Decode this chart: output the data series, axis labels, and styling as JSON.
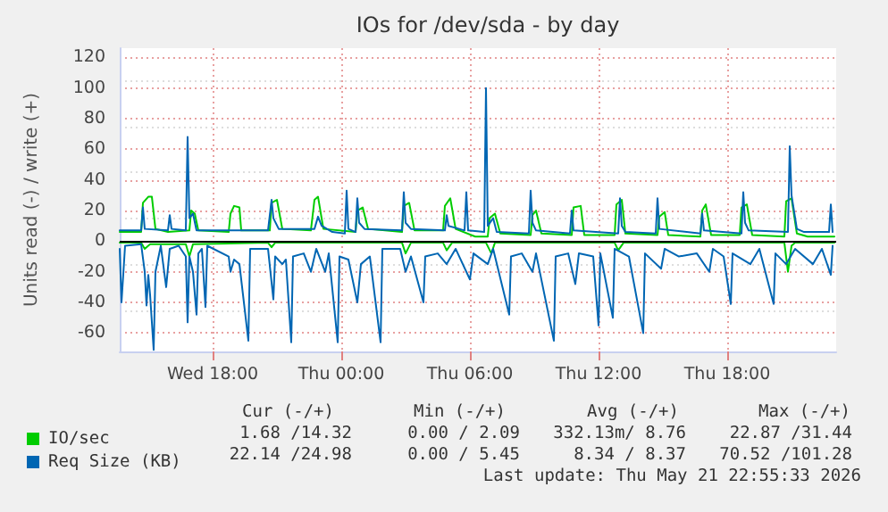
{
  "chart_data": {
    "type": "line",
    "title": "IOs for /dev/sda - by day",
    "ylabel": "Units read (-) / write (+)",
    "xlim": [
      "2026-05-20T13:40",
      "2026-05-21T23:05"
    ],
    "xticks": [
      {
        "value": "2026-05-20T18:00",
        "label": "Wed 18:00"
      },
      {
        "value": "2026-05-21T00:00",
        "label": "Thu 00:00"
      },
      {
        "value": "2026-05-21T06:00",
        "label": "Thu 06:00"
      },
      {
        "value": "2026-05-21T12:00",
        "label": "Thu 12:00"
      },
      {
        "value": "2026-05-21T18:00",
        "label": "Thu 18:00"
      }
    ],
    "ylim": [
      -72,
      126
    ],
    "yticks": [
      -60,
      -40,
      -20,
      0,
      20,
      40,
      60,
      80,
      100,
      120
    ],
    "grid": true,
    "legend": "bottom left",
    "marker": "none",
    "line_style": "solid",
    "ref_lines": [
      {
        "axis": "y",
        "value": 0,
        "color": "#000000"
      }
    ],
    "annotations": [
      "Cur (-/+)",
      "Min (-/+)",
      "Avg (-/+)",
      "Max (-/+)",
      "1.68 /14.32",
      "0.00 / 2.09",
      "332.13m/ 8.76",
      "22.87 /31.44",
      "22.14 /24.98",
      "0.00 / 5.45",
      "8.34 / 8.37",
      "70.52 /101.28",
      "Last update: Thu May 21 22:55:33 2026"
    ],
    "series": [
      {
        "name": "IO/sec",
        "color": "#00cc00",
        "x": [
          "2026-05-20T13:40",
          "2026-05-20T14:40",
          "2026-05-20T14:45",
          "2026-05-20T15:00",
          "2026-05-20T15:10",
          "2026-05-20T15:20",
          "2026-05-20T15:55",
          "2026-05-20T16:55",
          "2026-05-20T17:00",
          "2026-05-20T17:10",
          "2026-05-20T17:20",
          "2026-05-20T18:45",
          "2026-05-20T18:50",
          "2026-05-20T19:00",
          "2026-05-20T19:15",
          "2026-05-20T19:20",
          "2026-05-20T20:40",
          "2026-05-20T20:45",
          "2026-05-20T21:00",
          "2026-05-20T21:15",
          "2026-05-20T22:35",
          "2026-05-20T22:45",
          "2026-05-20T22:55",
          "2026-05-20T23:10",
          "2026-05-21T00:40",
          "2026-05-21T00:45",
          "2026-05-21T01:00",
          "2026-05-21T01:15",
          "2026-05-21T02:50",
          "2026-05-21T02:55",
          "2026-05-21T03:10",
          "2026-05-21T03:25",
          "2026-05-21T04:45",
          "2026-05-21T04:50",
          "2026-05-21T05:05",
          "2026-05-21T05:20",
          "2026-05-21T06:15",
          "2026-05-21T06:50",
          "2026-05-21T06:55",
          "2026-05-21T07:10",
          "2026-05-21T07:25",
          "2026-05-21T08:50",
          "2026-05-21T08:55",
          "2026-05-21T09:05",
          "2026-05-21T09:20",
          "2026-05-21T10:45",
          "2026-05-21T10:50",
          "2026-05-21T11:10",
          "2026-05-21T11:20",
          "2026-05-21T12:45",
          "2026-05-21T12:50",
          "2026-05-21T13:05",
          "2026-05-21T13:15",
          "2026-05-21T14:45",
          "2026-05-21T14:50",
          "2026-05-21T15:05",
          "2026-05-21T15:15",
          "2026-05-21T16:45",
          "2026-05-21T16:50",
          "2026-05-21T17:00",
          "2026-05-21T17:15",
          "2026-05-21T18:35",
          "2026-05-21T18:40",
          "2026-05-21T18:55",
          "2026-05-21T19:10",
          "2026-05-21T20:40",
          "2026-05-21T20:45",
          "2026-05-21T21:00",
          "2026-05-21T21:15",
          "2026-05-21T21:45",
          "2026-05-21T23:00"
        ],
        "values": [
          6,
          6,
          25,
          29,
          29,
          8,
          6,
          7,
          20,
          18,
          7,
          6,
          18,
          23,
          22,
          7,
          7,
          25,
          27,
          8,
          7,
          27,
          29,
          8,
          6,
          20,
          22,
          8,
          6,
          23,
          25,
          7,
          7,
          23,
          28,
          8,
          3,
          3,
          15,
          18,
          5,
          4,
          17,
          20,
          5,
          4,
          22,
          23,
          4,
          4,
          24,
          27,
          5,
          4,
          16,
          19,
          4,
          3,
          20,
          24,
          4,
          4,
          22,
          24,
          4,
          3,
          26,
          28,
          5,
          3,
          3
        ]
      },
      {
        "name": "Req Size (KB)",
        "color": "#0066b3",
        "x": [
          "2026-05-20T13:40",
          "2026-05-20T14:40",
          "2026-05-20T14:45",
          "2026-05-20T14:50",
          "2026-05-20T15:55",
          "2026-05-20T16:00",
          "2026-05-20T16:05",
          "2026-05-20T16:45",
          "2026-05-20T16:50",
          "2026-05-20T16:55",
          "2026-05-20T17:05",
          "2026-05-20T17:15",
          "2026-05-20T20:35",
          "2026-05-20T20:45",
          "2026-05-20T20:50",
          "2026-05-20T21:05",
          "2026-05-20T22:45",
          "2026-05-20T22:55",
          "2026-05-20T23:05",
          "2026-05-20T23:35",
          "2026-05-21T00:10",
          "2026-05-21T00:15",
          "2026-05-21T00:20",
          "2026-05-21T00:40",
          "2026-05-21T00:45",
          "2026-05-21T00:50",
          "2026-05-21T01:05",
          "2026-05-21T02:50",
          "2026-05-21T02:55",
          "2026-05-21T03:00",
          "2026-05-21T03:15",
          "2026-05-21T04:50",
          "2026-05-21T04:55",
          "2026-05-21T05:00",
          "2026-05-21T05:45",
          "2026-05-21T05:50",
          "2026-05-21T05:55",
          "2026-05-21T06:40",
          "2026-05-21T06:45",
          "2026-05-21T06:50",
          "2026-05-21T07:05",
          "2026-05-21T07:15",
          "2026-05-21T08:45",
          "2026-05-21T08:50",
          "2026-05-21T08:55",
          "2026-05-21T09:05",
          "2026-05-21T10:40",
          "2026-05-21T10:45",
          "2026-05-21T10:50",
          "2026-05-21T12:55",
          "2026-05-21T13:00",
          "2026-05-21T13:05",
          "2026-05-21T13:15",
          "2026-05-21T14:40",
          "2026-05-21T14:45",
          "2026-05-21T14:50",
          "2026-05-21T16:45",
          "2026-05-21T16:50",
          "2026-05-21T16:55",
          "2026-05-21T18:40",
          "2026-05-21T18:45",
          "2026-05-21T18:50",
          "2026-05-21T19:00",
          "2026-05-21T20:50",
          "2026-05-21T20:55",
          "2026-05-21T21:00",
          "2026-05-21T21:15",
          "2026-05-21T21:35",
          "2026-05-21T22:45",
          "2026-05-21T22:50",
          "2026-05-21T22:55"
        ],
        "values": [
          7,
          7,
          22,
          8,
          7,
          17,
          8,
          7,
          68,
          15,
          18,
          7,
          7,
          27,
          15,
          8,
          8,
          16,
          10,
          6,
          5,
          33,
          8,
          6,
          28,
          12,
          8,
          7,
          32,
          12,
          8,
          7,
          17,
          10,
          7,
          32,
          7,
          6,
          100,
          10,
          15,
          6,
          5,
          33,
          12,
          7,
          5,
          20,
          7,
          5,
          28,
          10,
          6,
          5,
          28,
          8,
          5,
          18,
          7,
          5,
          32,
          12,
          7,
          6,
          62,
          30,
          8,
          6,
          6,
          24,
          6
        ]
      },
      {
        "color": "#00cc00",
        "x": [
          "2026-05-20T13:40",
          "2026-05-20T14:40",
          "2026-05-20T14:50",
          "2026-05-20T15:05",
          "2026-05-20T16:45",
          "2026-05-20T16:55",
          "2026-05-20T17:05",
          "2026-05-20T20:35",
          "2026-05-20T20:45",
          "2026-05-20T20:55",
          "2026-05-21T02:50",
          "2026-05-21T03:00",
          "2026-05-21T03:15",
          "2026-05-21T04:45",
          "2026-05-21T04:55",
          "2026-05-21T05:10",
          "2026-05-21T06:45",
          "2026-05-21T07:00",
          "2026-05-21T07:10",
          "2026-05-21T12:45",
          "2026-05-21T12:55",
          "2026-05-21T13:10",
          "2026-05-21T20:40",
          "2026-05-21T20:50",
          "2026-05-21T21:00",
          "2026-05-21T21:10",
          "2026-05-21T23:00"
        ],
        "values": [
          -1,
          -1,
          -5,
          -2,
          -2,
          -10,
          -2,
          -1,
          -4,
          -1,
          -1,
          -8,
          -1,
          -1,
          -6,
          -1,
          -1,
          -8,
          -1,
          -1,
          -6,
          -1,
          -1,
          -20,
          -3,
          -1,
          -1
        ]
      },
      {
        "color": "#0066b3",
        "x": [
          "2026-05-20T13:40",
          "2026-05-20T13:45",
          "2026-05-20T13:55",
          "2026-05-20T14:40",
          "2026-05-20T14:50",
          "2026-05-20T14:55",
          "2026-05-20T15:00",
          "2026-05-20T15:05",
          "2026-05-20T15:15",
          "2026-05-20T15:20",
          "2026-05-20T15:35",
          "2026-05-20T15:50",
          "2026-05-20T16:00",
          "2026-05-20T16:25",
          "2026-05-20T16:45",
          "2026-05-20T16:50",
          "2026-05-20T16:55",
          "2026-05-20T17:05",
          "2026-05-20T17:15",
          "2026-05-20T17:20",
          "2026-05-20T17:30",
          "2026-05-20T17:40",
          "2026-05-20T17:45",
          "2026-05-20T18:45",
          "2026-05-20T18:50",
          "2026-05-20T19:00",
          "2026-05-20T19:15",
          "2026-05-20T19:40",
          "2026-05-20T19:45",
          "2026-05-20T20:35",
          "2026-05-20T20:50",
          "2026-05-20T20:55",
          "2026-05-20T21:15",
          "2026-05-20T21:25",
          "2026-05-20T21:40",
          "2026-05-20T21:45",
          "2026-05-20T22:15",
          "2026-05-20T22:35",
          "2026-05-20T22:50",
          "2026-05-20T23:15",
          "2026-05-20T23:25",
          "2026-05-20T23:50",
          "2026-05-20T23:55",
          "2026-05-21T00:20",
          "2026-05-21T00:45",
          "2026-05-21T00:55",
          "2026-05-21T01:20",
          "2026-05-21T01:50",
          "2026-05-21T01:55",
          "2026-05-21T02:45",
          "2026-05-21T03:00",
          "2026-05-21T03:15",
          "2026-05-21T03:50",
          "2026-05-21T03:55",
          "2026-05-21T04:30",
          "2026-05-21T04:55",
          "2026-05-21T05:20",
          "2026-05-21T06:00",
          "2026-05-21T06:10",
          "2026-05-21T06:50",
          "2026-05-21T07:05",
          "2026-05-21T07:50",
          "2026-05-21T07:55",
          "2026-05-21T08:25",
          "2026-05-21T08:55",
          "2026-05-21T09:05",
          "2026-05-21T09:55",
          "2026-05-21T10:00",
          "2026-05-21T10:35",
          "2026-05-21T10:55",
          "2026-05-21T11:05",
          "2026-05-21T11:45",
          "2026-05-21T12:00",
          "2026-05-21T12:05",
          "2026-05-21T12:40",
          "2026-05-21T12:45",
          "2026-05-21T13:25",
          "2026-05-21T14:05",
          "2026-05-21T14:10",
          "2026-05-21T14:55",
          "2026-05-21T15:05",
          "2026-05-21T15:45",
          "2026-05-21T16:35",
          "2026-05-21T17:10",
          "2026-05-21T17:20",
          "2026-05-21T17:50",
          "2026-05-21T18:10",
          "2026-05-21T18:15",
          "2026-05-21T19:05",
          "2026-05-21T19:30",
          "2026-05-21T20:10",
          "2026-05-21T20:15",
          "2026-05-21T20:45",
          "2026-05-21T21:10",
          "2026-05-21T22:00",
          "2026-05-21T22:25",
          "2026-05-21T22:50",
          "2026-05-21T22:55"
        ],
        "values": [
          -5,
          -40,
          -3,
          -2,
          -20,
          -42,
          -22,
          -35,
          -71,
          -20,
          -3,
          -30,
          -5,
          -3,
          -10,
          -53,
          -10,
          -20,
          -48,
          -8,
          -5,
          -43,
          -3,
          -10,
          -20,
          -12,
          -15,
          -65,
          -5,
          -5,
          -38,
          -10,
          -15,
          -12,
          -66,
          -10,
          -8,
          -20,
          -5,
          -20,
          -8,
          -66,
          -10,
          -12,
          -40,
          -15,
          -10,
          -66,
          -5,
          -5,
          -20,
          -10,
          -40,
          -10,
          -8,
          -15,
          -5,
          -25,
          -8,
          -15,
          -5,
          -48,
          -10,
          -8,
          -20,
          -8,
          -65,
          -10,
          -8,
          -28,
          -8,
          -10,
          -55,
          -8,
          -50,
          -5,
          -10,
          -60,
          -8,
          -18,
          -5,
          -10,
          -8,
          -20,
          -5,
          -10,
          -41,
          -8,
          -15,
          -5,
          -41,
          -8,
          -15,
          -5,
          -15,
          -5,
          -22,
          -3
        ]
      }
    ]
  }
}
